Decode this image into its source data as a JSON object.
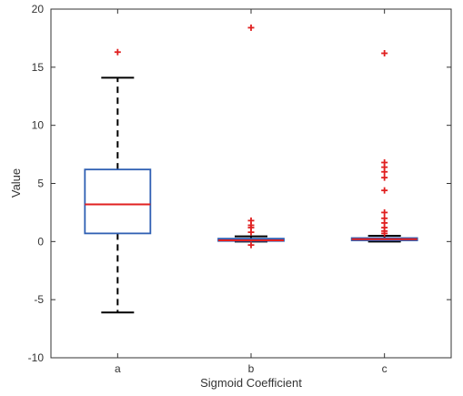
{
  "chart_data": {
    "type": "boxplot",
    "xlabel": "Sigmoid Coefficient",
    "ylabel": "Value",
    "ylim": [
      -10,
      20
    ],
    "yticks": [
      -10,
      -5,
      0,
      5,
      10,
      15,
      20
    ],
    "grid": false,
    "categories": [
      "a",
      "b",
      "c"
    ],
    "boxes": [
      {
        "category": "a",
        "whisker_low": -6.1,
        "q1": 0.7,
        "median": 3.2,
        "q3": 6.2,
        "whisker_high": 14.1,
        "outliers": [
          16.3
        ]
      },
      {
        "category": "b",
        "whisker_low": 0.0,
        "q1": 0.05,
        "median": 0.1,
        "q3": 0.25,
        "whisker_high": 0.45,
        "outliers": [
          18.4,
          1.8,
          1.4,
          1.2,
          0.8,
          -0.3
        ]
      },
      {
        "category": "c",
        "whisker_low": 0.0,
        "q1": 0.1,
        "median": 0.2,
        "q3": 0.3,
        "whisker_high": 0.5,
        "outliers": [
          16.2,
          6.8,
          6.4,
          6.0,
          5.5,
          4.4,
          2.5,
          2.0,
          1.6,
          1.2,
          0.9,
          0.7
        ]
      }
    ],
    "colors": {
      "box": "#2f5fb3",
      "median": "#e02020",
      "whisker": "#000000",
      "outlier": "#e02020",
      "axis": "#333333"
    }
  }
}
